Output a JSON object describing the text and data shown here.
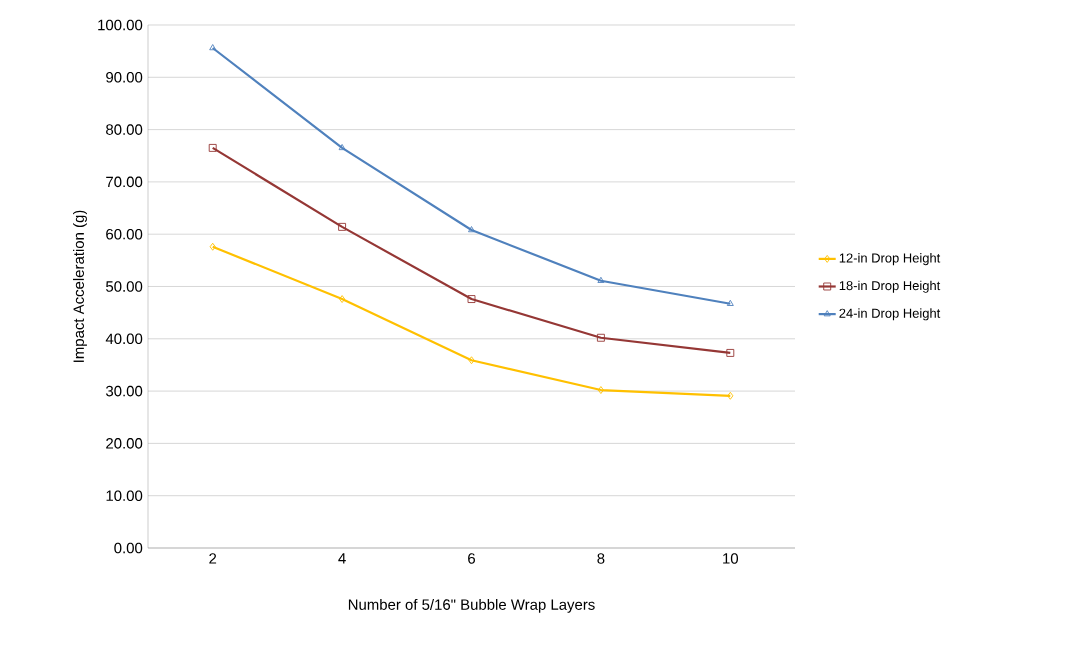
{
  "chart_data": {
    "type": "line",
    "xlabel": "Number of 5/16\" Bubble Wrap Layers",
    "ylabel": "Impact Acceleration (g)",
    "categories": [
      "2",
      "4",
      "6",
      "8",
      "10"
    ],
    "series": [
      {
        "name": "12-in Drop Height",
        "color": "#ffc000",
        "marker": "diamond",
        "values": [
          57.6,
          47.6,
          35.9,
          30.2,
          29.1
        ]
      },
      {
        "name": "18-in Drop Height",
        "color": "#953735",
        "marker": "square",
        "values": [
          76.5,
          61.4,
          47.6,
          40.2,
          37.3
        ]
      },
      {
        "name": "24-in Drop Height",
        "color": "#4f81bd",
        "marker": "triangle",
        "values": [
          95.6,
          76.5,
          60.8,
          51.1,
          46.7
        ]
      }
    ],
    "ylim": [
      0,
      100
    ],
    "yticks": [
      {
        "value": 0,
        "label": "0.00"
      },
      {
        "value": 10,
        "label": "10.00"
      },
      {
        "value": 20,
        "label": "20.00"
      },
      {
        "value": 30,
        "label": "30.00"
      },
      {
        "value": 40,
        "label": "40.00"
      },
      {
        "value": 50,
        "label": "50.00"
      },
      {
        "value": 60,
        "label": "60.00"
      },
      {
        "value": 70,
        "label": "70.00"
      },
      {
        "value": 80,
        "label": "80.00"
      },
      {
        "value": 90,
        "label": "90.00"
      },
      {
        "value": 100,
        "label": "100.00"
      }
    ],
    "grid": "y",
    "legend": "right",
    "line_style": "solid"
  }
}
